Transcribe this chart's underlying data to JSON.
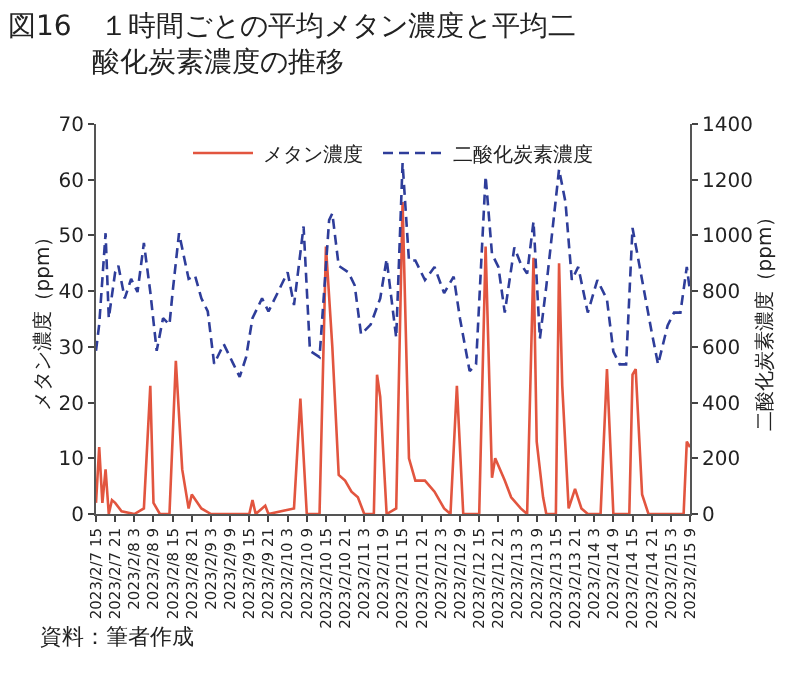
{
  "chart_data": {
    "type": "line",
    "title": "図16　１時間ごとの平均メタン濃度と平均二酸化炭素濃度の推移",
    "ylabel": "メタン濃度（ppm）",
    "y2label": "二酸化炭素濃度（ppm）",
    "annotations": [
      "資料：筆者作成"
    ],
    "xlim": [
      "2023-02-07T15:00",
      "2023-02-15T09:00"
    ],
    "xticks": [
      {
        "value": "2023-02-07T15:00",
        "label": "2023/2/7 15"
      },
      {
        "value": "2023-02-07T21:00",
        "label": "2023/2/7 21"
      },
      {
        "value": "2023-02-08T03:00",
        "label": "2023/2/8 3"
      },
      {
        "value": "2023-02-08T09:00",
        "label": "2023/2/8 9"
      },
      {
        "value": "2023-02-08T15:00",
        "label": "2023/2/8 15"
      },
      {
        "value": "2023-02-08T21:00",
        "label": "2023/2/8 21"
      },
      {
        "value": "2023-02-09T03:00",
        "label": "2023/2/9 3"
      },
      {
        "value": "2023-02-09T09:00",
        "label": "2023/2/9 9"
      },
      {
        "value": "2023-02-09T15:00",
        "label": "2023/2/9 15"
      },
      {
        "value": "2023-02-09T21:00",
        "label": "2023/2/9 21"
      },
      {
        "value": "2023-02-10T03:00",
        "label": "2023/2/10 3"
      },
      {
        "value": "2023-02-10T09:00",
        "label": "2023/2/10 9"
      },
      {
        "value": "2023-02-10T15:00",
        "label": "2023/2/10 15"
      },
      {
        "value": "2023-02-10T21:00",
        "label": "2023/2/10 21"
      },
      {
        "value": "2023-02-11T03:00",
        "label": "2023/2/11 3"
      },
      {
        "value": "2023-02-11T09:00",
        "label": "2023/2/11 9"
      },
      {
        "value": "2023-02-11T15:00",
        "label": "2023/2/11 15"
      },
      {
        "value": "2023-02-11T21:00",
        "label": "2023/2/11 21"
      },
      {
        "value": "2023-02-12T03:00",
        "label": "2023/2/12 3"
      },
      {
        "value": "2023-02-12T09:00",
        "label": "2023/2/12 9"
      },
      {
        "value": "2023-02-12T15:00",
        "label": "2023/2/12 15"
      },
      {
        "value": "2023-02-12T21:00",
        "label": "2023/2/12 21"
      },
      {
        "value": "2023-02-13T03:00",
        "label": "2023/2/13 3"
      },
      {
        "value": "2023-02-13T09:00",
        "label": "2023/2/13 9"
      },
      {
        "value": "2023-02-13T15:00",
        "label": "2023/2/13 15"
      },
      {
        "value": "2023-02-13T21:00",
        "label": "2023/2/13 21"
      },
      {
        "value": "2023-02-14T03:00",
        "label": "2023/2/14 3"
      },
      {
        "value": "2023-02-14T09:00",
        "label": "2023/2/14 9"
      },
      {
        "value": "2023-02-14T15:00",
        "label": "2023/2/14 15"
      },
      {
        "value": "2023-02-14T21:00",
        "label": "2023/2/14 21"
      },
      {
        "value": "2023-02-15T03:00",
        "label": "2023/2/15 3"
      },
      {
        "value": "2023-02-15T09:00",
        "label": "2023/2/15 9"
      }
    ],
    "ylim": [
      0,
      70
    ],
    "yticks": [
      0,
      10,
      20,
      30,
      40,
      50,
      60,
      70
    ],
    "y2lim": [
      0,
      1400
    ],
    "y2ticks": [
      0,
      200,
      400,
      600,
      800,
      1000,
      1200,
      1400
    ],
    "legend": "top",
    "marker": "none",
    "series": [
      {
        "name": "メタン濃度",
        "color": "#e2553f",
        "line_style": "solid",
        "x": [
          "2023-02-07T15:00",
          "2023-02-07T16:00",
          "2023-02-07T17:00",
          "2023-02-07T18:00",
          "2023-02-07T19:00",
          "2023-02-07T20:00",
          "2023-02-07T21:00",
          "2023-02-07T23:00",
          "2023-02-08T03:00",
          "2023-02-08T06:00",
          "2023-02-08T08:00",
          "2023-02-08T09:00",
          "2023-02-08T11:00",
          "2023-02-08T14:00",
          "2023-02-08T16:00",
          "2023-02-08T18:00",
          "2023-02-08T20:00",
          "2023-02-08T21:00",
          "2023-02-09T00:00",
          "2023-02-09T03:00",
          "2023-02-09T15:00",
          "2023-02-09T16:00",
          "2023-02-09T17:00",
          "2023-02-09T20:00",
          "2023-02-09T21:00",
          "2023-02-10T05:00",
          "2023-02-10T07:00",
          "2023-02-10T09:00",
          "2023-02-10T13:00",
          "2023-02-10T15:00",
          "2023-02-10T17:00",
          "2023-02-10T19:00",
          "2023-02-10T21:00",
          "2023-02-10T23:00",
          "2023-02-11T01:00",
          "2023-02-11T03:00",
          "2023-02-11T06:00",
          "2023-02-11T07:00",
          "2023-02-11T08:00",
          "2023-02-11T10:00",
          "2023-02-11T13:00",
          "2023-02-11T15:00",
          "2023-02-11T17:00",
          "2023-02-11T19:00",
          "2023-02-11T22:00",
          "2023-02-12T01:00",
          "2023-02-12T04:00",
          "2023-02-12T06:00",
          "2023-02-12T08:00",
          "2023-02-12T10:00",
          "2023-02-12T15:00",
          "2023-02-12T17:00",
          "2023-02-12T19:00",
          "2023-02-12T20:00",
          "2023-02-12T23:00",
          "2023-02-13T01:00",
          "2023-02-13T04:00",
          "2023-02-13T06:00",
          "2023-02-13T08:00",
          "2023-02-13T09:00",
          "2023-02-13T11:00",
          "2023-02-13T12:00",
          "2023-02-13T15:00",
          "2023-02-13T16:00",
          "2023-02-13T17:00",
          "2023-02-13T19:00",
          "2023-02-13T21:00",
          "2023-02-13T23:00",
          "2023-02-14T01:00",
          "2023-02-14T05:00",
          "2023-02-14T07:00",
          "2023-02-14T09:00",
          "2023-02-14T14:00",
          "2023-02-14T15:00",
          "2023-02-14T16:00",
          "2023-02-14T18:00",
          "2023-02-14T20:00",
          "2023-02-15T07:00",
          "2023-02-15T08:00",
          "2023-02-15T09:00"
        ],
        "values": [
          2,
          12,
          2,
          8,
          0,
          2.5,
          2,
          0.5,
          0,
          1,
          23,
          2,
          0,
          0,
          27.5,
          8,
          1,
          3.5,
          1,
          0,
          0,
          2.5,
          0,
          1.5,
          0,
          1,
          20.7,
          0,
          0,
          48,
          30,
          7,
          6,
          4,
          3,
          0,
          0,
          25,
          21,
          0,
          1,
          56,
          10,
          6,
          6,
          4,
          1,
          0,
          23,
          0,
          0,
          48,
          6.5,
          10,
          6,
          3,
          1,
          0,
          46,
          13,
          3,
          0,
          0,
          45,
          23,
          1,
          4.5,
          1,
          0,
          0,
          26,
          0,
          0,
          25,
          26,
          3.5,
          0,
          0,
          13,
          12
        ]
      },
      {
        "name": "二酸化炭素濃度",
        "color": "#2e3d9a",
        "line_style": "dashed",
        "axis": "y2",
        "x": [
          "2023-02-07T15:00",
          "2023-02-07T16:00",
          "2023-02-07T18:00",
          "2023-02-07T19:00",
          "2023-02-07T21:00",
          "2023-02-07T22:00",
          "2023-02-08T00:00",
          "2023-02-08T02:00",
          "2023-02-08T04:00",
          "2023-02-08T06:00",
          "2023-02-08T08:00",
          "2023-02-08T10:00",
          "2023-02-08T12:00",
          "2023-02-08T14:00",
          "2023-02-08T15:00",
          "2023-02-08T17:00",
          "2023-02-08T20:00",
          "2023-02-08T22:00",
          "2023-02-09T00:00",
          "2023-02-09T02:00",
          "2023-02-09T04:00",
          "2023-02-09T07:00",
          "2023-02-09T10:00",
          "2023-02-09T12:00",
          "2023-02-09T14:00",
          "2023-02-09T16:00",
          "2023-02-09T19:00",
          "2023-02-09T21:00",
          "2023-02-10T00:00",
          "2023-02-10T03:00",
          "2023-02-10T05:00",
          "2023-02-10T08:00",
          "2023-02-10T10:00",
          "2023-02-10T13:00",
          "2023-02-10T16:00",
          "2023-02-10T17:00",
          "2023-02-10T19:00",
          "2023-02-10T22:00",
          "2023-02-11T00:00",
          "2023-02-11T02:00",
          "2023-02-11T05:00",
          "2023-02-11T08:00",
          "2023-02-11T10:00",
          "2023-02-11T12:00",
          "2023-02-11T13:00",
          "2023-02-11T15:00",
          "2023-02-11T17:00",
          "2023-02-11T19:00",
          "2023-02-11T22:00",
          "2023-02-12T01:00",
          "2023-02-12T04:00",
          "2023-02-12T07:00",
          "2023-02-12T09:00",
          "2023-02-12T12:00",
          "2023-02-12T14:00",
          "2023-02-12T17:00",
          "2023-02-12T19:00",
          "2023-02-12T21:00",
          "2023-02-12T23:00",
          "2023-02-13T02:00",
          "2023-02-13T04:00",
          "2023-02-13T06:00",
          "2023-02-13T08:00",
          "2023-02-13T10:00",
          "2023-02-13T12:00",
          "2023-02-13T16:00",
          "2023-02-13T18:00",
          "2023-02-13T20:00",
          "2023-02-13T22:00",
          "2023-02-14T01:00",
          "2023-02-14T04:00",
          "2023-02-14T07:00",
          "2023-02-14T09:00",
          "2023-02-14T11:00",
          "2023-02-14T13:00",
          "2023-02-14T15:00",
          "2023-02-14T18:00",
          "2023-02-14T21:00",
          "2023-02-14T23:00",
          "2023-02-15T02:00",
          "2023-02-15T04:00",
          "2023-02-15T06:00",
          "2023-02-15T08:00",
          "2023-02-15T09:00"
        ],
        "values": [
          586,
          680,
          1008,
          703,
          868,
          891,
          774,
          844,
          797,
          973,
          797,
          586,
          703,
          680,
          797,
          1008,
          844,
          856,
          774,
          727,
          539,
          610,
          539,
          492,
          563,
          703,
          774,
          727,
          797,
          868,
          750,
          1032,
          586,
          563,
          1055,
          1079,
          891,
          868,
          821,
          645,
          680,
          774,
          915,
          727,
          633,
          1260,
          910,
          910,
          840,
          887,
          793,
          852,
          700,
          513,
          537,
          1213,
          933,
          887,
          723,
          957,
          898,
          863,
          1050,
          630,
          817,
          1237,
          1120,
          840,
          887,
          723,
          840,
          770,
          583,
          537,
          537,
          1027,
          840,
          653,
          537,
          677,
          723,
          723,
          887,
          800
        ]
      }
    ]
  }
}
